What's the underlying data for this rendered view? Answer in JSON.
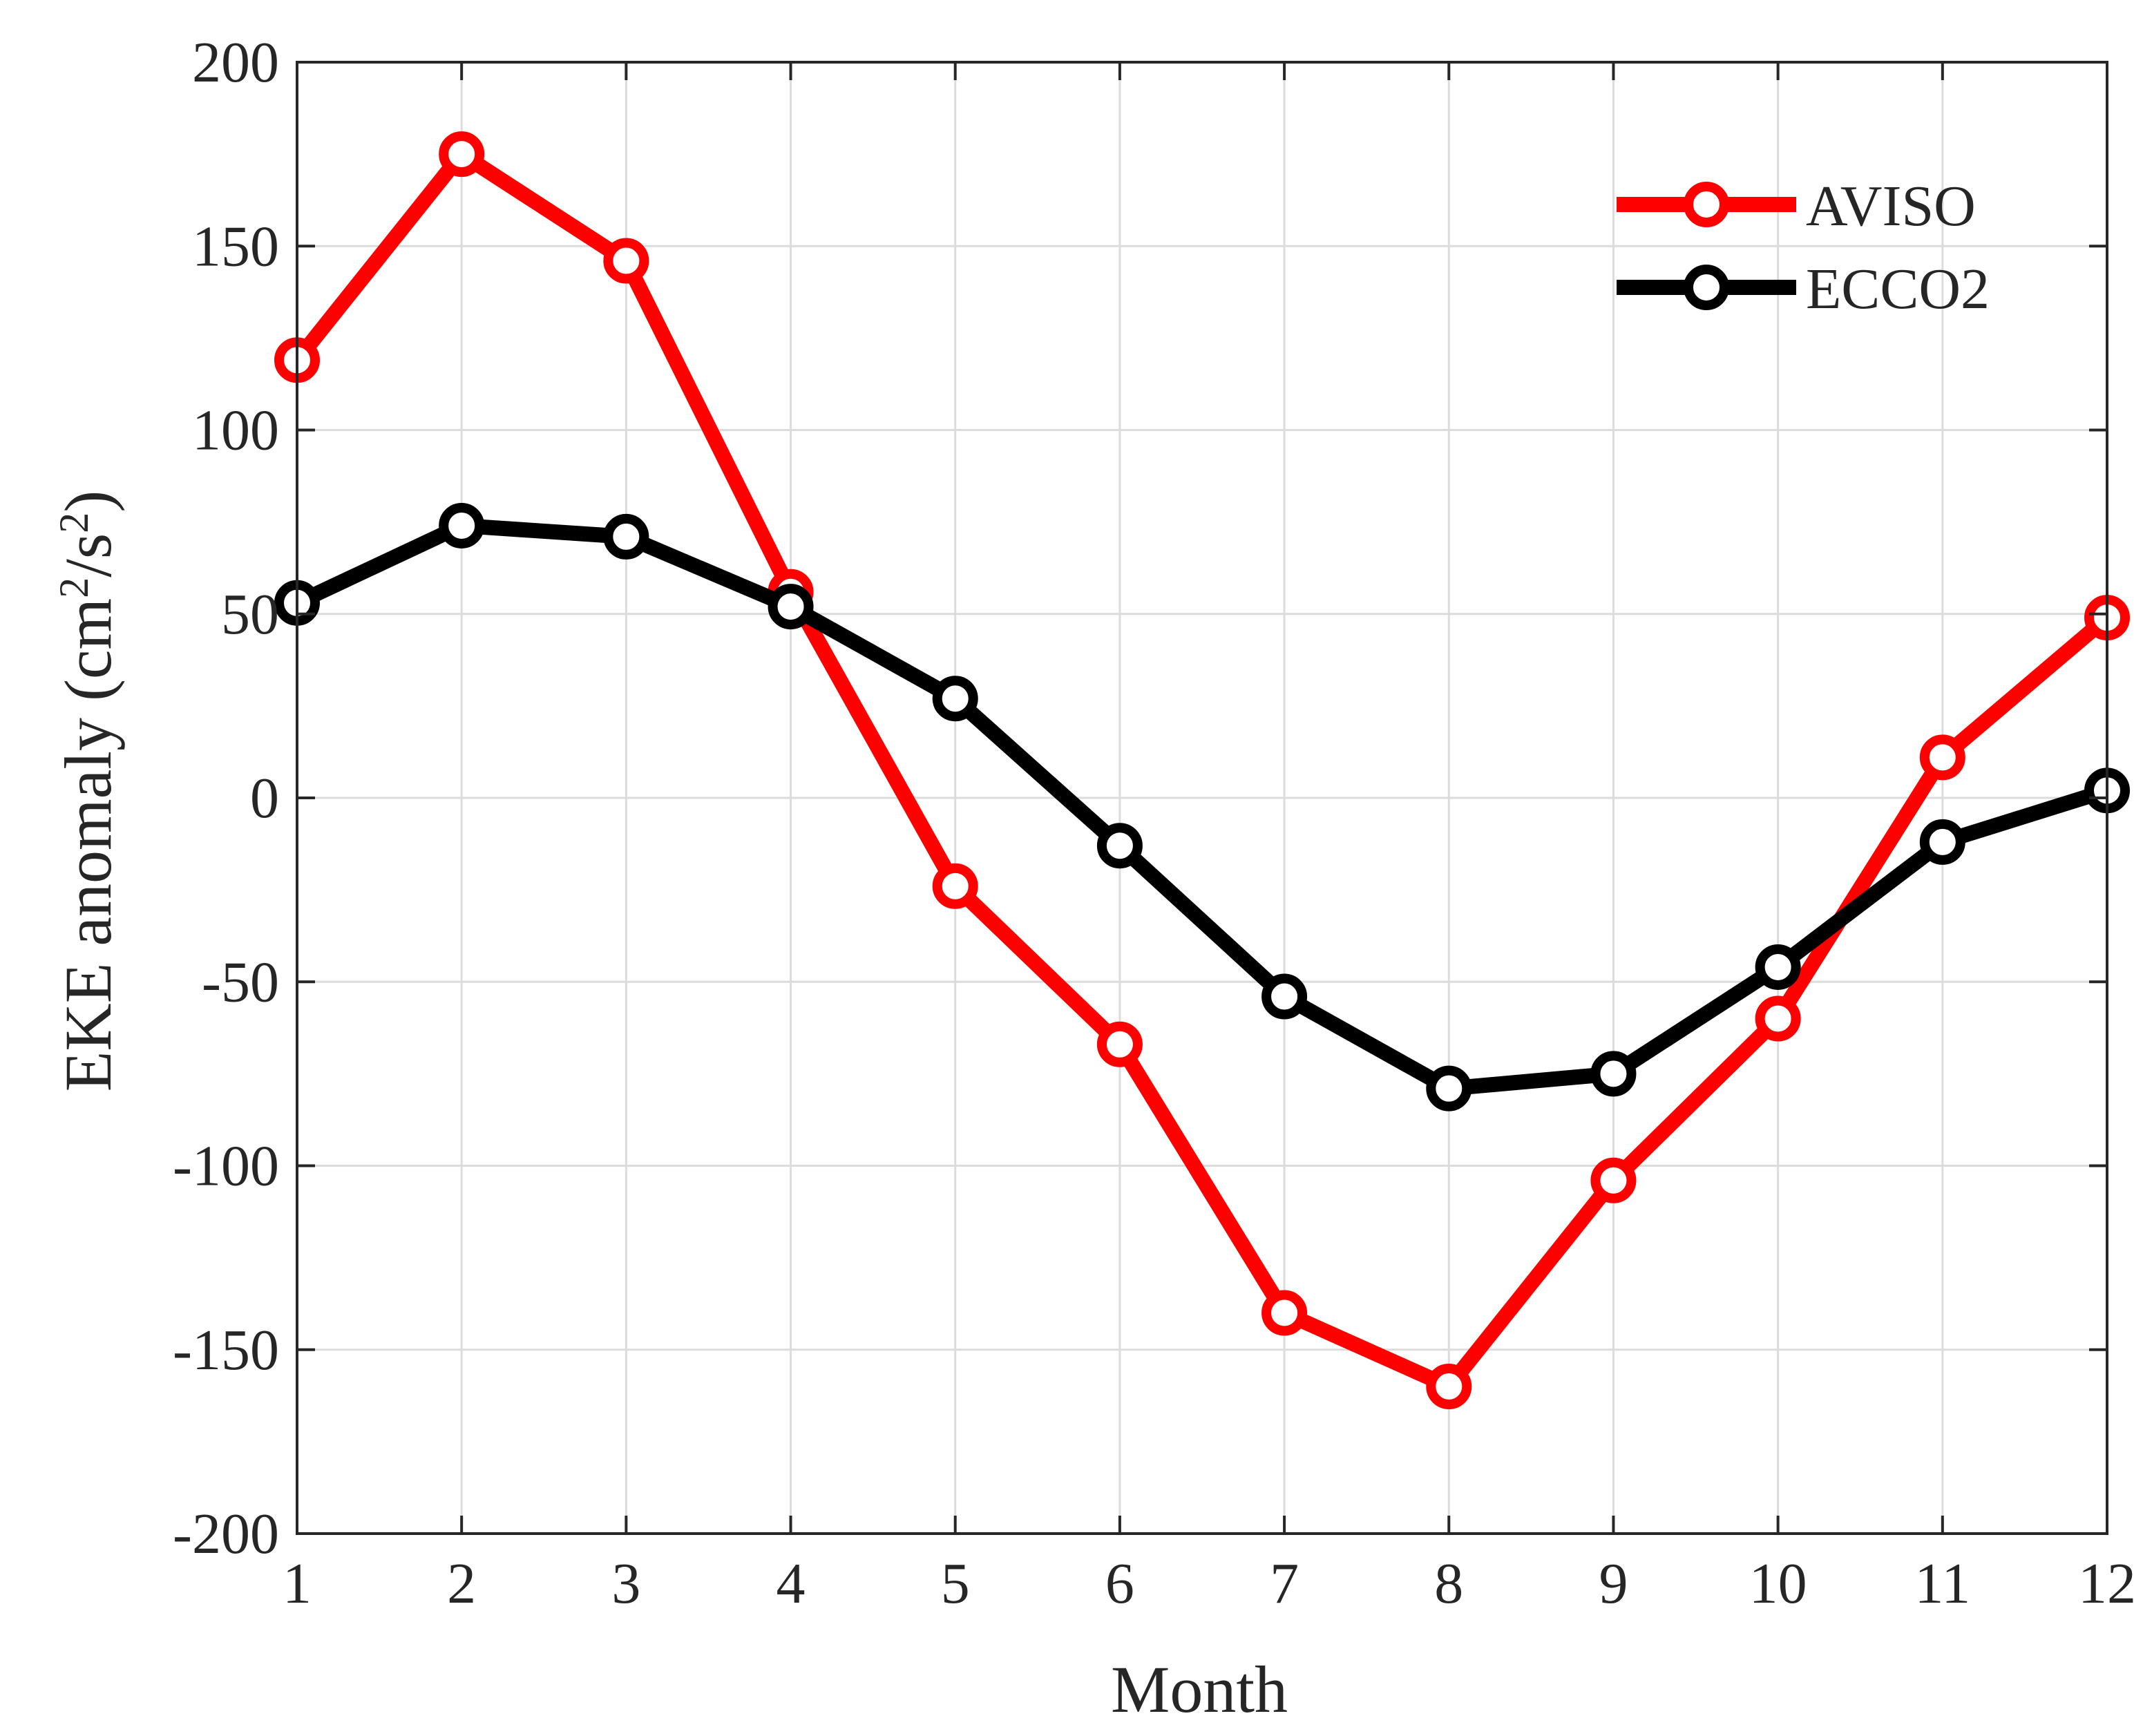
{
  "chart_data": {
    "type": "line",
    "title": "",
    "xlabel": "Month",
    "ylabel": "EKE anomaly (cm²/s²)",
    "ylabel_parts": {
      "main": "EKE anomaly (cm",
      "sup1": "2",
      "mid": "/s",
      "sup2": "2",
      "end": ")"
    },
    "xlim": [
      1,
      12
    ],
    "ylim": [
      -200,
      200
    ],
    "x": [
      1,
      2,
      3,
      4,
      5,
      6,
      7,
      8,
      9,
      10,
      11,
      12
    ],
    "xticks": [
      "1",
      "2",
      "3",
      "4",
      "5",
      "6",
      "7",
      "8",
      "9",
      "10",
      "11",
      "12"
    ],
    "yticks": [
      -200,
      -150,
      -100,
      -50,
      0,
      50,
      100,
      150,
      200
    ],
    "ytick_labels": [
      "-200",
      "-150",
      "-100",
      "-50",
      "0",
      "50",
      "100",
      "150",
      "200"
    ],
    "grid": true,
    "legend_position": "top-right",
    "series": [
      {
        "name": "AVISO",
        "color": "#ff0000",
        "values": [
          119,
          175,
          146,
          56,
          -24,
          -67,
          -140,
          -160,
          -104,
          -60,
          11,
          49
        ]
      },
      {
        "name": "ECCO2",
        "color": "#000000",
        "values": [
          53,
          74,
          71,
          52,
          27,
          -13,
          -54,
          -79,
          -75,
          -46,
          -12,
          2
        ]
      }
    ]
  }
}
